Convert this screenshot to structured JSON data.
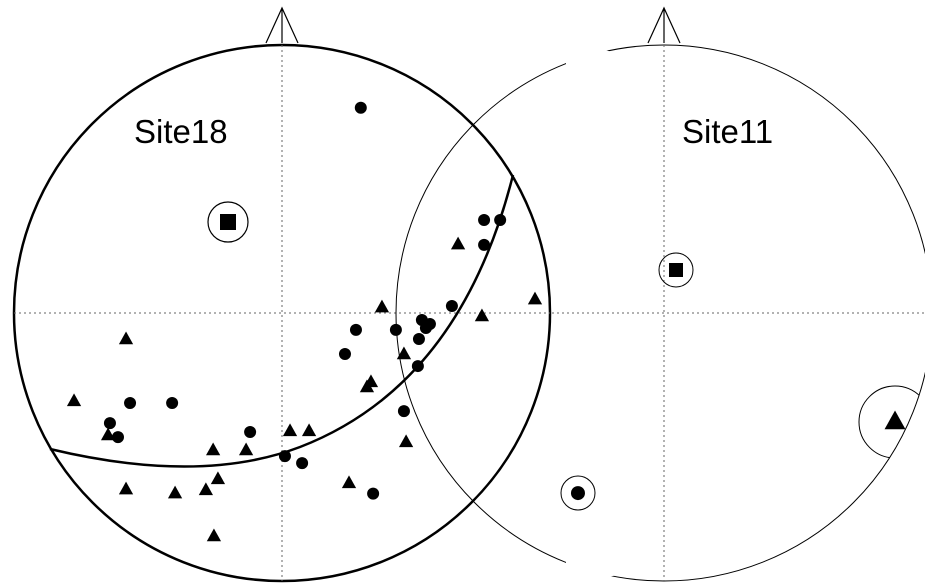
{
  "plots": [
    {
      "id": "site18",
      "title": "Site18",
      "mean": {
        "symbol": "square",
        "ringed": true
      },
      "circles": [
        {
          "dx": 0.294,
          "dy": -0.766
        },
        {
          "dx": 0.754,
          "dy": -0.347
        },
        {
          "dx": 0.814,
          "dy": -0.347
        },
        {
          "dx": 0.754,
          "dy": -0.254
        },
        {
          "dx": 0.634,
          "dy": -0.026
        },
        {
          "dx": 0.522,
          "dy": 0.026
        },
        {
          "dx": 0.552,
          "dy": 0.041
        },
        {
          "dx": 0.537,
          "dy": 0.056
        },
        {
          "dx": 0.425,
          "dy": 0.063
        },
        {
          "dx": 0.276,
          "dy": 0.063
        },
        {
          "dx": 0.511,
          "dy": 0.097
        },
        {
          "dx": 0.235,
          "dy": 0.153
        },
        {
          "dx": 0.507,
          "dy": 0.198
        },
        {
          "dx": -0.41,
          "dy": 0.336
        },
        {
          "dx": -0.567,
          "dy": 0.336
        },
        {
          "dx": -0.642,
          "dy": 0.411
        },
        {
          "dx": -0.612,
          "dy": 0.463
        },
        {
          "dx": 0.455,
          "dy": 0.366
        },
        {
          "dx": -0.119,
          "dy": 0.444
        },
        {
          "dx": 0.011,
          "dy": 0.534
        },
        {
          "dx": 0.075,
          "dy": 0.56
        },
        {
          "dx": 0.34,
          "dy": 0.674
        }
      ],
      "triangles": [
        {
          "dx": 0.657,
          "dy": -0.257
        },
        {
          "dx": 0.944,
          "dy": -0.052
        },
        {
          "dx": 0.746,
          "dy": 0.011
        },
        {
          "dx": 0.373,
          "dy": -0.022
        },
        {
          "dx": -0.582,
          "dy": 0.097
        },
        {
          "dx": 0.455,
          "dy": 0.153
        },
        {
          "dx": 0.332,
          "dy": 0.257
        },
        {
          "dx": 0.317,
          "dy": 0.276
        },
        {
          "dx": -0.776,
          "dy": 0.328
        },
        {
          "dx": 0.463,
          "dy": 0.481
        },
        {
          "dx": 0.03,
          "dy": 0.44
        },
        {
          "dx": 0.101,
          "dy": 0.44
        },
        {
          "dx": -0.134,
          "dy": 0.511
        },
        {
          "dx": -0.257,
          "dy": 0.511
        },
        {
          "dx": -0.649,
          "dy": 0.455
        },
        {
          "dx": 0.25,
          "dy": 0.634
        },
        {
          "dx": -0.239,
          "dy": 0.619
        },
        {
          "dx": -0.582,
          "dy": 0.657
        },
        {
          "dx": -0.399,
          "dy": 0.672
        },
        {
          "dx": -0.284,
          "dy": 0.66
        },
        {
          "dx": -0.254,
          "dy": 0.832
        }
      ]
    },
    {
      "id": "site11",
      "title": "Site11",
      "mean": {
        "symbol": "square",
        "ringed": true
      },
      "circles": [
        {
          "dx": -0.321,
          "dy": 0.672
        }
      ],
      "triangles": [
        {
          "dx": 0.862,
          "dy": 0.405
        }
      ]
    }
  ]
}
